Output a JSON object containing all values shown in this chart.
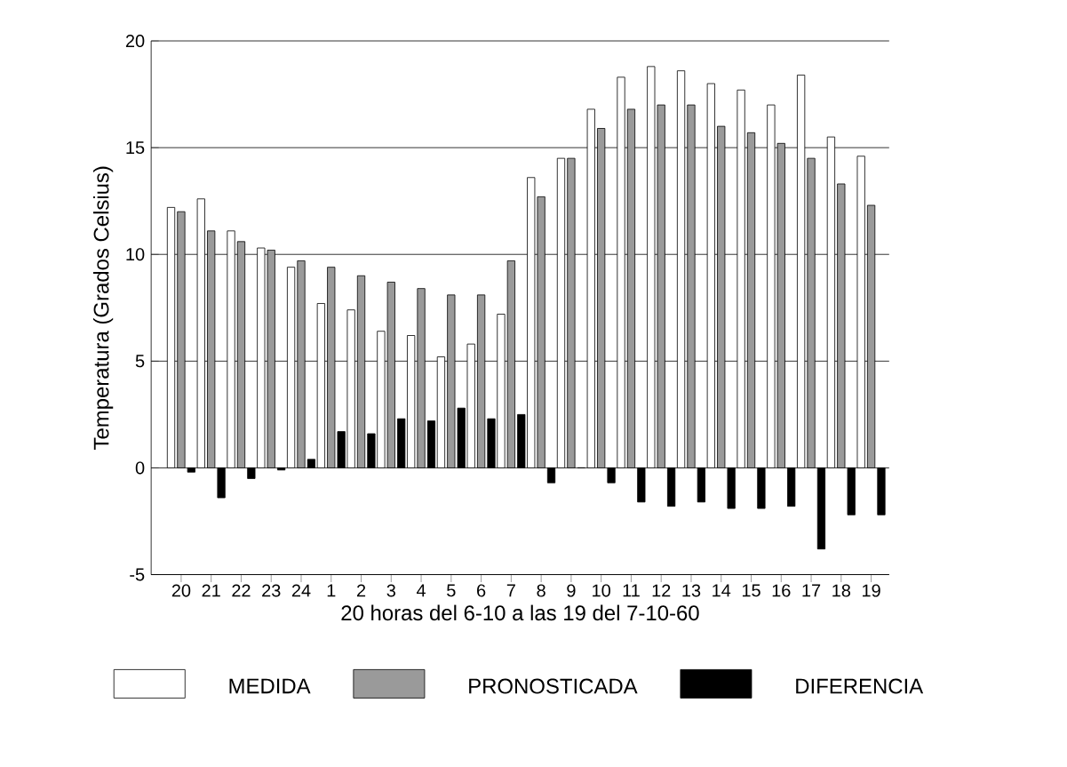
{
  "chart_data": {
    "type": "bar",
    "xlabel": "20 horas del 6-10 a las 19 del 7-10-60",
    "ylabel": "Temperatura (Grados Celsius)",
    "categories": [
      "20",
      "21",
      "22",
      "23",
      "24",
      "1",
      "2",
      "3",
      "4",
      "5",
      "6",
      "7",
      "8",
      "9",
      "10",
      "11",
      "12",
      "13",
      "14",
      "15",
      "16",
      "17",
      "18",
      "19"
    ],
    "series": [
      {
        "name": "MEDIDA",
        "color": "#ffffff",
        "values": [
          12.2,
          12.6,
          11.1,
          10.3,
          9.4,
          7.7,
          7.4,
          6.4,
          6.2,
          5.2,
          5.8,
          7.2,
          13.6,
          14.5,
          16.8,
          18.3,
          18.8,
          18.6,
          18.0,
          17.7,
          17.0,
          18.4,
          15.5,
          14.6
        ]
      },
      {
        "name": "PRONOSTICADA",
        "color": "#9a9a9a",
        "values": [
          12.0,
          11.1,
          10.6,
          10.2,
          9.7,
          9.4,
          9.0,
          8.7,
          8.4,
          8.1,
          8.1,
          9.7,
          12.7,
          14.5,
          15.9,
          16.8,
          17.0,
          17.0,
          16.0,
          15.7,
          15.2,
          14.5,
          13.3,
          12.3
        ]
      },
      {
        "name": "DIFERENCIA",
        "color": "#000000",
        "values": [
          -0.2,
          -1.4,
          -0.5,
          -0.1,
          0.4,
          1.7,
          1.6,
          2.3,
          2.2,
          2.8,
          2.3,
          2.5,
          -0.7,
          0.0,
          -0.7,
          -1.6,
          -1.8,
          -1.6,
          -1.9,
          -1.9,
          -1.8,
          -3.8,
          -2.2,
          -2.2
        ]
      }
    ],
    "ylim": [
      -5,
      20
    ],
    "yticks": [
      -5,
      0,
      5,
      10,
      15,
      20
    ],
    "grid": "y",
    "legend": "bottom"
  }
}
